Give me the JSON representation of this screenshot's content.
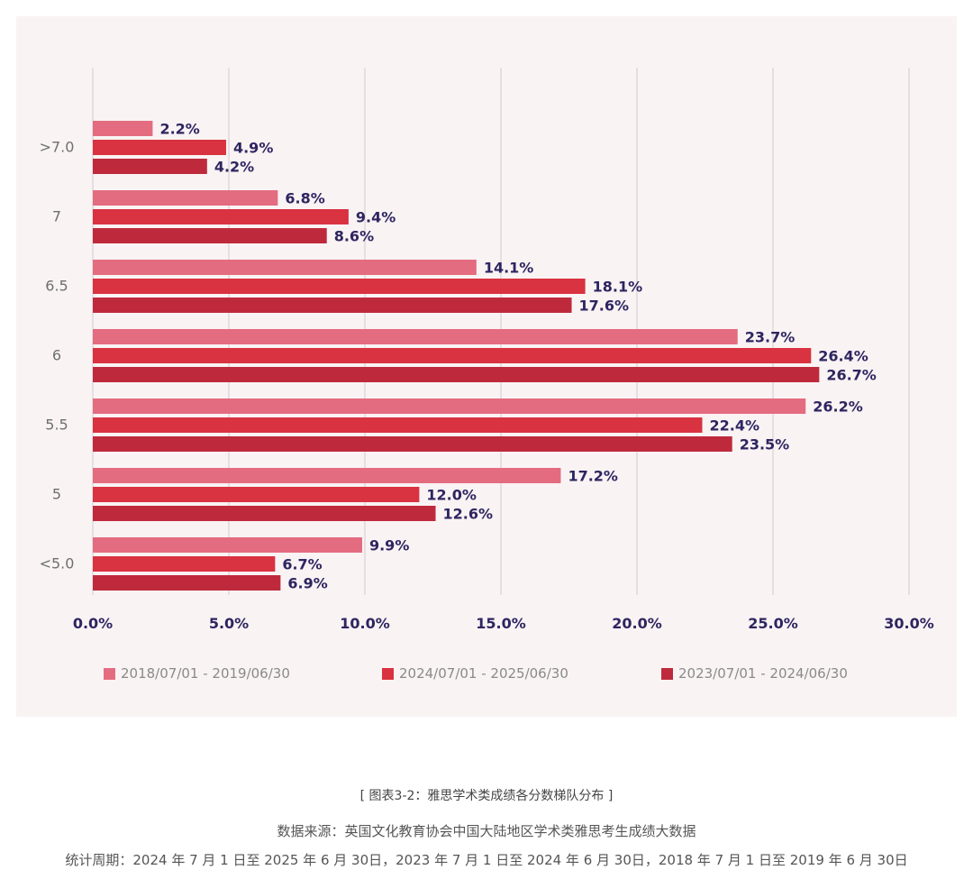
{
  "chart_data": {
    "type": "bar",
    "orientation": "horizontal",
    "categories": [
      ">7.0",
      "7",
      "6.5",
      "6",
      "5.5",
      "5",
      "<5.0"
    ],
    "series": [
      {
        "name": "2018/07/01 - 2019/06/30",
        "color": "#e46c80",
        "values": [
          2.2,
          6.8,
          14.1,
          23.7,
          26.2,
          17.2,
          9.9
        ]
      },
      {
        "name": "2024/07/01 - 2025/06/30",
        "color": "#d93240",
        "values": [
          4.9,
          9.4,
          18.1,
          26.4,
          22.4,
          12.0,
          6.7
        ]
      },
      {
        "name": "2023/07/01 - 2024/06/30",
        "color": "#be2a3c",
        "values": [
          4.2,
          8.6,
          17.6,
          26.7,
          23.5,
          12.6,
          6.9
        ]
      }
    ],
    "data_labels": [
      [
        "2.2%",
        "6.8%",
        "14.1%",
        "23.7%",
        "26.2%",
        "17.2%",
        "9.9%"
      ],
      [
        "4.9%",
        "9.4%",
        "18.1%",
        "26.4%",
        "22.4%",
        "12.0%",
        "6.7%"
      ],
      [
        "4.2%",
        "8.6%",
        "17.6%",
        "26.7%",
        "23.5%",
        "12.6%",
        "6.9%"
      ]
    ],
    "xlim": [
      0,
      30
    ],
    "xticks": [
      0,
      5,
      10,
      15,
      20,
      25,
      30
    ],
    "xtick_labels": [
      "0.0%",
      "5.0%",
      "10.0%",
      "15.0%",
      "20.0%",
      "25.0%",
      "30.0%"
    ],
    "grid": true,
    "legend_position": "bottom"
  },
  "legend": {
    "items": [
      {
        "label": "2018/07/01 - 2019/06/30",
        "color": "#e46c80"
      },
      {
        "label": "2024/07/01 - 2025/06/30",
        "color": "#d93240"
      },
      {
        "label": "2023/07/01 - 2024/06/30",
        "color": "#be2a3c"
      }
    ]
  },
  "caption": {
    "title": "[ 图表3-2：雅思学术类成绩各分数梯队分布 ]",
    "source": "数据来源：英国文化教育协会中国大陆地区学术类雅思考生成绩大数据",
    "period": "统计周期：2024 年 7 月 1 日至 2025 年 6 月 30日，2023 年 7 月 1 日至 2024 年 6 月 30日，2018 年 7 月 1 日至 2019 年 6 月 30日"
  },
  "colors": {
    "panel_bg": "#f9f3f4",
    "label_text": "#2e2560",
    "tick_text": "#2e2560",
    "category_text": "#6f6f6f",
    "grid": "#d9d2d6"
  }
}
